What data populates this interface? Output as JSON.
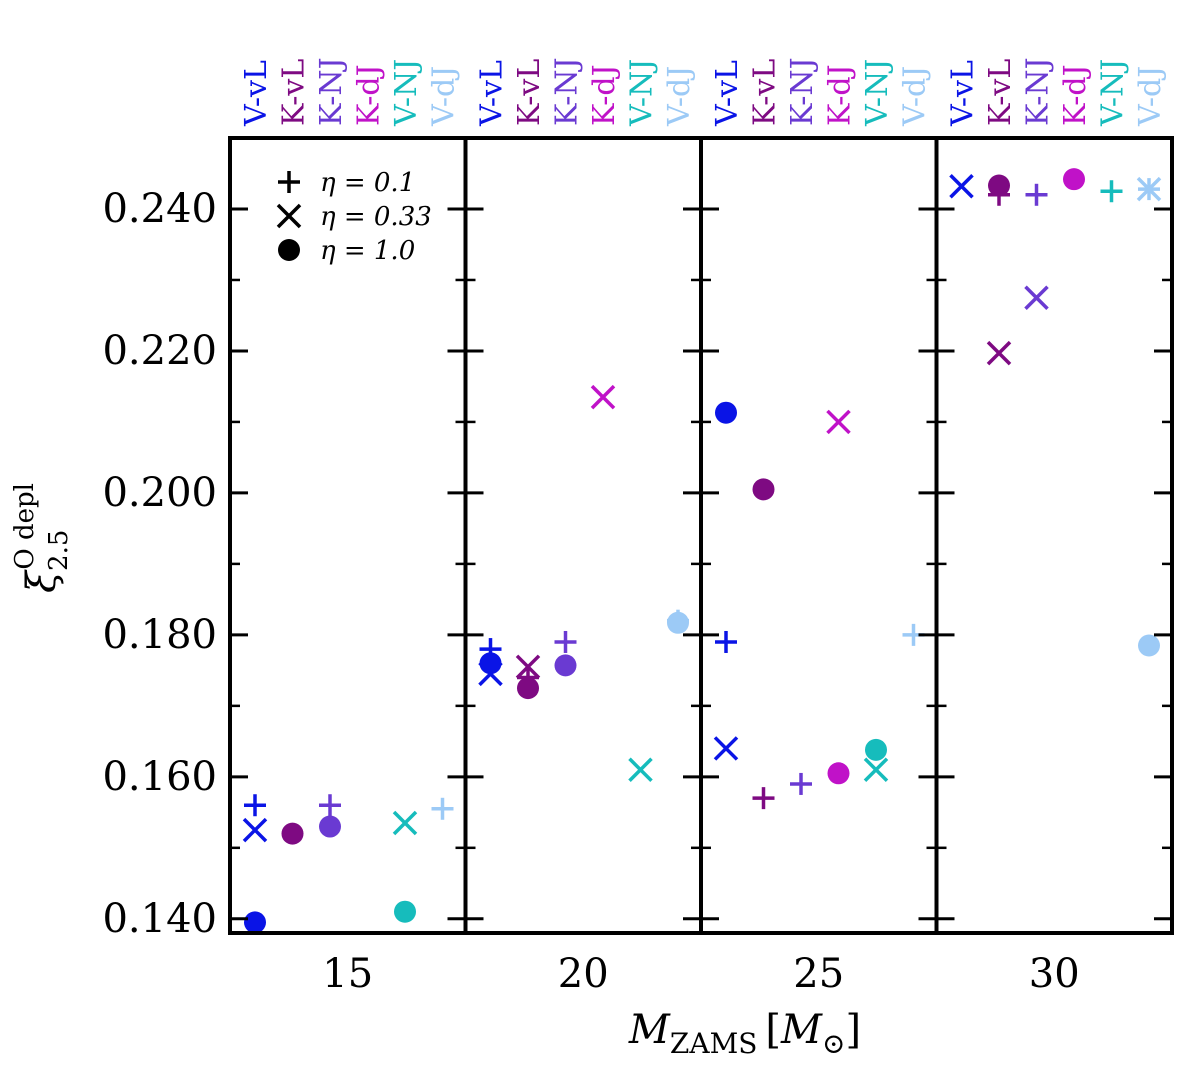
{
  "chart_data": {
    "type": "scatter",
    "title": "",
    "xlabel": "M_ZAMS [M_⊙]",
    "ylabel": "ξ 2.5 O depl",
    "xlabel_parts": {
      "main": "M",
      "sub": "ZAMS",
      "bracket_open": "[",
      "inner": "M",
      "inner_sub": "⊙",
      "bracket_close": "]"
    },
    "ylabel_parts": {
      "main": "ξ",
      "sub": "2.5",
      "sup": "O depl"
    },
    "ylim": [
      0.138,
      0.25
    ],
    "yticks": [
      0.14,
      0.16,
      0.18,
      0.2,
      0.22,
      0.24
    ],
    "ytick_labels": [
      "0.140",
      "0.160",
      "0.180",
      "0.200",
      "0.220",
      "0.240"
    ],
    "panels": [
      {
        "mass": 15,
        "label": "15"
      },
      {
        "mass": 20,
        "label": "20"
      },
      {
        "mass": 25,
        "label": "25"
      },
      {
        "mass": 30,
        "label": "30"
      }
    ],
    "models": [
      "V-vL",
      "K-vL",
      "K-NJ",
      "K-dJ",
      "V-NJ",
      "V-dJ"
    ],
    "model_colors": {
      "V-vL": "#0a14e6",
      "K-vL": "#7e0a82",
      "K-NJ": "#6a3ad2",
      "K-dJ": "#c012c8",
      "V-NJ": "#16bcbc",
      "V-dJ": "#9ccaf6"
    },
    "legend": [
      {
        "marker": "plus",
        "label": "η = 0.1"
      },
      {
        "marker": "cross",
        "label": "η = 0.33"
      },
      {
        "marker": "circle",
        "label": "η = 1.0"
      }
    ],
    "legend_position": "top-left",
    "series": [
      {
        "name": "η = 0.1",
        "marker": "plus",
        "points": [
          {
            "mass": 15,
            "model": "V-vL",
            "y": 0.156
          },
          {
            "mass": 15,
            "model": "K-NJ",
            "y": 0.156
          },
          {
            "mass": 15,
            "model": "V-dJ",
            "y": 0.1555
          },
          {
            "mass": 20,
            "model": "V-vL",
            "y": 0.178
          },
          {
            "mass": 20,
            "model": "K-vL",
            "y": 0.174
          },
          {
            "mass": 20,
            "model": "K-NJ",
            "y": 0.179
          },
          {
            "mass": 20,
            "model": "V-dJ",
            "y": 0.182
          },
          {
            "mass": 25,
            "model": "V-vL",
            "y": 0.179
          },
          {
            "mass": 25,
            "model": "K-vL",
            "y": 0.157
          },
          {
            "mass": 25,
            "model": "K-NJ",
            "y": 0.159
          },
          {
            "mass": 25,
            "model": "V-dJ",
            "y": 0.18
          },
          {
            "mass": 30,
            "model": "K-vL",
            "y": 0.242
          },
          {
            "mass": 30,
            "model": "K-NJ",
            "y": 0.242
          },
          {
            "mass": 30,
            "model": "V-NJ",
            "y": 0.2425
          },
          {
            "mass": 30,
            "model": "V-dJ",
            "y": 0.2428
          }
        ]
      },
      {
        "name": "η = 0.33",
        "marker": "cross",
        "points": [
          {
            "mass": 15,
            "model": "V-vL",
            "y": 0.1525
          },
          {
            "mass": 15,
            "model": "V-NJ",
            "y": 0.1535
          },
          {
            "mass": 20,
            "model": "V-vL",
            "y": 0.1745
          },
          {
            "mass": 20,
            "model": "K-vL",
            "y": 0.1755
          },
          {
            "mass": 20,
            "model": "K-dJ",
            "y": 0.2135
          },
          {
            "mass": 20,
            "model": "V-NJ",
            "y": 0.161
          },
          {
            "mass": 25,
            "model": "V-vL",
            "y": 0.164
          },
          {
            "mass": 25,
            "model": "K-dJ",
            "y": 0.21
          },
          {
            "mass": 25,
            "model": "V-NJ",
            "y": 0.161
          },
          {
            "mass": 30,
            "model": "V-vL",
            "y": 0.2432
          },
          {
            "mass": 30,
            "model": "K-vL",
            "y": 0.2197
          },
          {
            "mass": 30,
            "model": "K-NJ",
            "y": 0.2275
          },
          {
            "mass": 30,
            "model": "V-dJ",
            "y": 0.2428
          }
        ]
      },
      {
        "name": "η = 1.0",
        "marker": "circle",
        "points": [
          {
            "mass": 15,
            "model": "V-vL",
            "y": 0.1395
          },
          {
            "mass": 15,
            "model": "K-vL",
            "y": 0.152
          },
          {
            "mass": 15,
            "model": "K-NJ",
            "y": 0.153
          },
          {
            "mass": 15,
            "model": "V-NJ",
            "y": 0.141
          },
          {
            "mass": 20,
            "model": "V-vL",
            "y": 0.176
          },
          {
            "mass": 20,
            "model": "K-vL",
            "y": 0.1725
          },
          {
            "mass": 20,
            "model": "K-NJ",
            "y": 0.1757
          },
          {
            "mass": 20,
            "model": "V-dJ",
            "y": 0.1817
          },
          {
            "mass": 25,
            "model": "V-vL",
            "y": 0.2113
          },
          {
            "mass": 25,
            "model": "K-vL",
            "y": 0.2005
          },
          {
            "mass": 25,
            "model": "K-dJ",
            "y": 0.1605
          },
          {
            "mass": 25,
            "model": "V-NJ",
            "y": 0.1638
          },
          {
            "mass": 30,
            "model": "K-vL",
            "y": 0.2433
          },
          {
            "mass": 30,
            "model": "K-dJ",
            "y": 0.2442
          },
          {
            "mass": 30,
            "model": "V-dJ",
            "y": 0.1785
          }
        ]
      }
    ]
  }
}
